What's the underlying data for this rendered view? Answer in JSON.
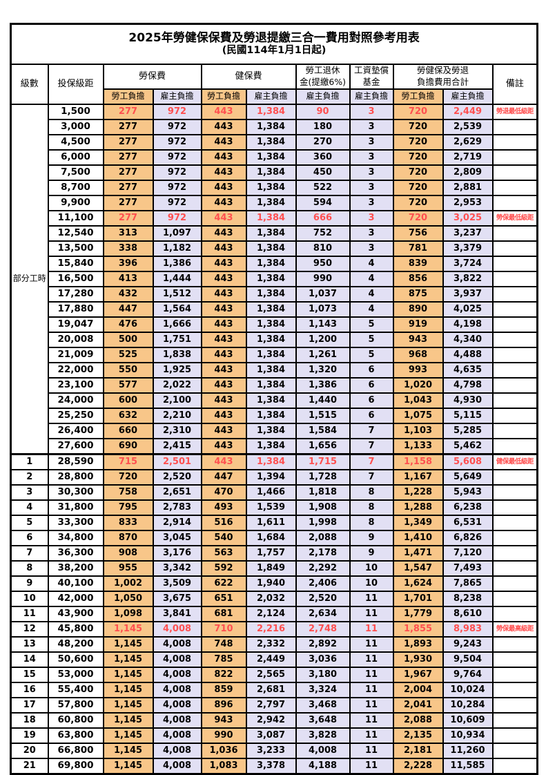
{
  "page": {
    "title": "2025年勞健保保費及勞退提繳三合一費用對照參考用表",
    "subtitle": "(民國114年1月1日起)"
  },
  "colors": {
    "employee_col_bg": "#F8C689",
    "employer_col_bg": "#E2E0F4",
    "highlight_text": "#FF5050",
    "grid_border": "#000000"
  },
  "header": {
    "level": "級數",
    "bracket": "投保級距",
    "labor_insurance": "勞保費",
    "health_insurance": "健保費",
    "pension_line1": "勞工退休",
    "pension_line2": "金(提繳6%)",
    "wage_fund_line1": "工資墊償",
    "wage_fund_line2": "基金",
    "total_line1": "勞健保及勞退",
    "total_line2": "負擔費用合計",
    "remark": "備註",
    "employee_share": "勞工負擔",
    "employer_share": "雇主負擔"
  },
  "part_time_label": "部分工時",
  "rows": [
    {
      "level": "",
      "bracket": "1,500",
      "labor_emp": "277",
      "labor_er": "972",
      "health_emp": "443",
      "health_er": "1,384",
      "pension": "90",
      "wage_fund": "3",
      "total_emp": "720",
      "total_er": "2,449",
      "remark": "勞退最低級距",
      "highlight": true
    },
    {
      "level": "",
      "bracket": "3,000",
      "labor_emp": "277",
      "labor_er": "972",
      "health_emp": "443",
      "health_er": "1,384",
      "pension": "180",
      "wage_fund": "3",
      "total_emp": "720",
      "total_er": "2,539",
      "remark": "",
      "highlight": false
    },
    {
      "level": "",
      "bracket": "4,500",
      "labor_emp": "277",
      "labor_er": "972",
      "health_emp": "443",
      "health_er": "1,384",
      "pension": "270",
      "wage_fund": "3",
      "total_emp": "720",
      "total_er": "2,629",
      "remark": "",
      "highlight": false
    },
    {
      "level": "",
      "bracket": "6,000",
      "labor_emp": "277",
      "labor_er": "972",
      "health_emp": "443",
      "health_er": "1,384",
      "pension": "360",
      "wage_fund": "3",
      "total_emp": "720",
      "total_er": "2,719",
      "remark": "",
      "highlight": false
    },
    {
      "level": "",
      "bracket": "7,500",
      "labor_emp": "277",
      "labor_er": "972",
      "health_emp": "443",
      "health_er": "1,384",
      "pension": "450",
      "wage_fund": "3",
      "total_emp": "720",
      "total_er": "2,809",
      "remark": "",
      "highlight": false
    },
    {
      "level": "",
      "bracket": "8,700",
      "labor_emp": "277",
      "labor_er": "972",
      "health_emp": "443",
      "health_er": "1,384",
      "pension": "522",
      "wage_fund": "3",
      "total_emp": "720",
      "total_er": "2,881",
      "remark": "",
      "highlight": false
    },
    {
      "level": "",
      "bracket": "9,900",
      "labor_emp": "277",
      "labor_er": "972",
      "health_emp": "443",
      "health_er": "1,384",
      "pension": "594",
      "wage_fund": "3",
      "total_emp": "720",
      "total_er": "2,953",
      "remark": "",
      "highlight": false
    },
    {
      "level": "",
      "bracket": "11,100",
      "labor_emp": "277",
      "labor_er": "972",
      "health_emp": "443",
      "health_er": "1,384",
      "pension": "666",
      "wage_fund": "3",
      "total_emp": "720",
      "total_er": "3,025",
      "remark": "勞保最低級距",
      "highlight": true
    },
    {
      "level": "",
      "bracket": "12,540",
      "labor_emp": "313",
      "labor_er": "1,097",
      "health_emp": "443",
      "health_er": "1,384",
      "pension": "752",
      "wage_fund": "3",
      "total_emp": "756",
      "total_er": "3,237",
      "remark": "",
      "highlight": false
    },
    {
      "level": "",
      "bracket": "13,500",
      "labor_emp": "338",
      "labor_er": "1,182",
      "health_emp": "443",
      "health_er": "1,384",
      "pension": "810",
      "wage_fund": "3",
      "total_emp": "781",
      "total_er": "3,379",
      "remark": "",
      "highlight": false
    },
    {
      "level": "",
      "bracket": "15,840",
      "labor_emp": "396",
      "labor_er": "1,386",
      "health_emp": "443",
      "health_er": "1,384",
      "pension": "950",
      "wage_fund": "4",
      "total_emp": "839",
      "total_er": "3,724",
      "remark": "",
      "highlight": false
    },
    {
      "level": "",
      "bracket": "16,500",
      "labor_emp": "413",
      "labor_er": "1,444",
      "health_emp": "443",
      "health_er": "1,384",
      "pension": "990",
      "wage_fund": "4",
      "total_emp": "856",
      "total_er": "3,822",
      "remark": "",
      "highlight": false
    },
    {
      "level": "",
      "bracket": "17,280",
      "labor_emp": "432",
      "labor_er": "1,512",
      "health_emp": "443",
      "health_er": "1,384",
      "pension": "1,037",
      "wage_fund": "4",
      "total_emp": "875",
      "total_er": "3,937",
      "remark": "",
      "highlight": false
    },
    {
      "level": "",
      "bracket": "17,880",
      "labor_emp": "447",
      "labor_er": "1,564",
      "health_emp": "443",
      "health_er": "1,384",
      "pension": "1,073",
      "wage_fund": "4",
      "total_emp": "890",
      "total_er": "4,025",
      "remark": "",
      "highlight": false
    },
    {
      "level": "",
      "bracket": "19,047",
      "labor_emp": "476",
      "labor_er": "1,666",
      "health_emp": "443",
      "health_er": "1,384",
      "pension": "1,143",
      "wage_fund": "5",
      "total_emp": "919",
      "total_er": "4,198",
      "remark": "",
      "highlight": false
    },
    {
      "level": "",
      "bracket": "20,008",
      "labor_emp": "500",
      "labor_er": "1,751",
      "health_emp": "443",
      "health_er": "1,384",
      "pension": "1,200",
      "wage_fund": "5",
      "total_emp": "943",
      "total_er": "4,340",
      "remark": "",
      "highlight": false
    },
    {
      "level": "",
      "bracket": "21,009",
      "labor_emp": "525",
      "labor_er": "1,838",
      "health_emp": "443",
      "health_er": "1,384",
      "pension": "1,261",
      "wage_fund": "5",
      "total_emp": "968",
      "total_er": "4,488",
      "remark": "",
      "highlight": false
    },
    {
      "level": "",
      "bracket": "22,000",
      "labor_emp": "550",
      "labor_er": "1,925",
      "health_emp": "443",
      "health_er": "1,384",
      "pension": "1,320",
      "wage_fund": "6",
      "total_emp": "993",
      "total_er": "4,635",
      "remark": "",
      "highlight": false
    },
    {
      "level": "",
      "bracket": "23,100",
      "labor_emp": "577",
      "labor_er": "2,022",
      "health_emp": "443",
      "health_er": "1,384",
      "pension": "1,386",
      "wage_fund": "6",
      "total_emp": "1,020",
      "total_er": "4,798",
      "remark": "",
      "highlight": false
    },
    {
      "level": "",
      "bracket": "24,000",
      "labor_emp": "600",
      "labor_er": "2,100",
      "health_emp": "443",
      "health_er": "1,384",
      "pension": "1,440",
      "wage_fund": "6",
      "total_emp": "1,043",
      "total_er": "4,930",
      "remark": "",
      "highlight": false
    },
    {
      "level": "",
      "bracket": "25,250",
      "labor_emp": "632",
      "labor_er": "2,210",
      "health_emp": "443",
      "health_er": "1,384",
      "pension": "1,515",
      "wage_fund": "6",
      "total_emp": "1,075",
      "total_er": "5,115",
      "remark": "",
      "highlight": false
    },
    {
      "level": "",
      "bracket": "26,400",
      "labor_emp": "660",
      "labor_er": "2,310",
      "health_emp": "443",
      "health_er": "1,384",
      "pension": "1,584",
      "wage_fund": "7",
      "total_emp": "1,103",
      "total_er": "5,285",
      "remark": "",
      "highlight": false
    },
    {
      "level": "",
      "bracket": "27,600",
      "labor_emp": "690",
      "labor_er": "2,415",
      "health_emp": "443",
      "health_er": "1,384",
      "pension": "1,656",
      "wage_fund": "7",
      "total_emp": "1,133",
      "total_er": "5,462",
      "remark": "",
      "highlight": false
    },
    {
      "level": "1",
      "bracket": "28,590",
      "labor_emp": "715",
      "labor_er": "2,501",
      "health_emp": "443",
      "health_er": "1,384",
      "pension": "1,715",
      "wage_fund": "7",
      "total_emp": "1,158",
      "total_er": "5,608",
      "remark": "健保最低級距",
      "highlight": true
    },
    {
      "level": "2",
      "bracket": "28,800",
      "labor_emp": "720",
      "labor_er": "2,520",
      "health_emp": "447",
      "health_er": "1,394",
      "pension": "1,728",
      "wage_fund": "7",
      "total_emp": "1,167",
      "total_er": "5,649",
      "remark": "",
      "highlight": false
    },
    {
      "level": "3",
      "bracket": "30,300",
      "labor_emp": "758",
      "labor_er": "2,651",
      "health_emp": "470",
      "health_er": "1,466",
      "pension": "1,818",
      "wage_fund": "8",
      "total_emp": "1,228",
      "total_er": "5,943",
      "remark": "",
      "highlight": false
    },
    {
      "level": "4",
      "bracket": "31,800",
      "labor_emp": "795",
      "labor_er": "2,783",
      "health_emp": "493",
      "health_er": "1,539",
      "pension": "1,908",
      "wage_fund": "8",
      "total_emp": "1,288",
      "total_er": "6,238",
      "remark": "",
      "highlight": false
    },
    {
      "level": "5",
      "bracket": "33,300",
      "labor_emp": "833",
      "labor_er": "2,914",
      "health_emp": "516",
      "health_er": "1,611",
      "pension": "1,998",
      "wage_fund": "8",
      "total_emp": "1,349",
      "total_er": "6,531",
      "remark": "",
      "highlight": false
    },
    {
      "level": "6",
      "bracket": "34,800",
      "labor_emp": "870",
      "labor_er": "3,045",
      "health_emp": "540",
      "health_er": "1,684",
      "pension": "2,088",
      "wage_fund": "9",
      "total_emp": "1,410",
      "total_er": "6,826",
      "remark": "",
      "highlight": false
    },
    {
      "level": "7",
      "bracket": "36,300",
      "labor_emp": "908",
      "labor_er": "3,176",
      "health_emp": "563",
      "health_er": "1,757",
      "pension": "2,178",
      "wage_fund": "9",
      "total_emp": "1,471",
      "total_er": "7,120",
      "remark": "",
      "highlight": false
    },
    {
      "level": "8",
      "bracket": "38,200",
      "labor_emp": "955",
      "labor_er": "3,342",
      "health_emp": "592",
      "health_er": "1,849",
      "pension": "2,292",
      "wage_fund": "10",
      "total_emp": "1,547",
      "total_er": "7,493",
      "remark": "",
      "highlight": false
    },
    {
      "level": "9",
      "bracket": "40,100",
      "labor_emp": "1,002",
      "labor_er": "3,509",
      "health_emp": "622",
      "health_er": "1,940",
      "pension": "2,406",
      "wage_fund": "10",
      "total_emp": "1,624",
      "total_er": "7,865",
      "remark": "",
      "highlight": false
    },
    {
      "level": "10",
      "bracket": "42,000",
      "labor_emp": "1,050",
      "labor_er": "3,675",
      "health_emp": "651",
      "health_er": "2,032",
      "pension": "2,520",
      "wage_fund": "11",
      "total_emp": "1,701",
      "total_er": "8,238",
      "remark": "",
      "highlight": false
    },
    {
      "level": "11",
      "bracket": "43,900",
      "labor_emp": "1,098",
      "labor_er": "3,841",
      "health_emp": "681",
      "health_er": "2,124",
      "pension": "2,634",
      "wage_fund": "11",
      "total_emp": "1,779",
      "total_er": "8,610",
      "remark": "",
      "highlight": false
    },
    {
      "level": "12",
      "bracket": "45,800",
      "labor_emp": "1,145",
      "labor_er": "4,008",
      "health_emp": "710",
      "health_er": "2,216",
      "pension": "2,748",
      "wage_fund": "11",
      "total_emp": "1,855",
      "total_er": "8,983",
      "remark": "勞保最高級距",
      "highlight": true
    },
    {
      "level": "13",
      "bracket": "48,200",
      "labor_emp": "1,145",
      "labor_er": "4,008",
      "health_emp": "748",
      "health_er": "2,332",
      "pension": "2,892",
      "wage_fund": "11",
      "total_emp": "1,893",
      "total_er": "9,243",
      "remark": "",
      "highlight": false
    },
    {
      "level": "14",
      "bracket": "50,600",
      "labor_emp": "1,145",
      "labor_er": "4,008",
      "health_emp": "785",
      "health_er": "2,449",
      "pension": "3,036",
      "wage_fund": "11",
      "total_emp": "1,930",
      "total_er": "9,504",
      "remark": "",
      "highlight": false
    },
    {
      "level": "15",
      "bracket": "53,000",
      "labor_emp": "1,145",
      "labor_er": "4,008",
      "health_emp": "822",
      "health_er": "2,565",
      "pension": "3,180",
      "wage_fund": "11",
      "total_emp": "1,967",
      "total_er": "9,764",
      "remark": "",
      "highlight": false
    },
    {
      "level": "16",
      "bracket": "55,400",
      "labor_emp": "1,145",
      "labor_er": "4,008",
      "health_emp": "859",
      "health_er": "2,681",
      "pension": "3,324",
      "wage_fund": "11",
      "total_emp": "2,004",
      "total_er": "10,024",
      "remark": "",
      "highlight": false
    },
    {
      "level": "17",
      "bracket": "57,800",
      "labor_emp": "1,145",
      "labor_er": "4,008",
      "health_emp": "896",
      "health_er": "2,797",
      "pension": "3,468",
      "wage_fund": "11",
      "total_emp": "2,041",
      "total_er": "10,284",
      "remark": "",
      "highlight": false
    },
    {
      "level": "18",
      "bracket": "60,800",
      "labor_emp": "1,145",
      "labor_er": "4,008",
      "health_emp": "943",
      "health_er": "2,942",
      "pension": "3,648",
      "wage_fund": "11",
      "total_emp": "2,088",
      "total_er": "10,609",
      "remark": "",
      "highlight": false
    },
    {
      "level": "19",
      "bracket": "63,800",
      "labor_emp": "1,145",
      "labor_er": "4,008",
      "health_emp": "990",
      "health_er": "3,087",
      "pension": "3,828",
      "wage_fund": "11",
      "total_emp": "2,135",
      "total_er": "10,934",
      "remark": "",
      "highlight": false
    },
    {
      "level": "20",
      "bracket": "66,800",
      "labor_emp": "1,145",
      "labor_er": "4,008",
      "health_emp": "1,036",
      "health_er": "3,233",
      "pension": "4,008",
      "wage_fund": "11",
      "total_emp": "2,181",
      "total_er": "11,260",
      "remark": "",
      "highlight": false
    },
    {
      "level": "21",
      "bracket": "69,800",
      "labor_emp": "1,145",
      "labor_er": "4,008",
      "health_emp": "1,083",
      "health_er": "3,378",
      "pension": "4,188",
      "wage_fund": "11",
      "total_emp": "2,228",
      "total_er": "11,585",
      "remark": "",
      "highlight": false
    }
  ]
}
